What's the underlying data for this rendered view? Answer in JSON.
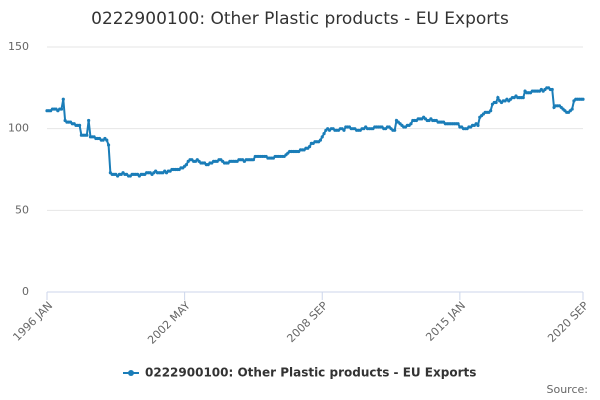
{
  "chart_data": {
    "type": "line",
    "title": "0222900100: Other Plastic products - EU Exports",
    "source": "Source:",
    "categories": [
      "1996 JAN",
      null,
      null,
      null,
      null,
      null,
      null,
      null,
      null,
      null,
      null,
      null,
      null,
      null,
      null,
      null,
      null,
      null,
      null,
      null,
      null,
      null,
      null,
      null,
      null,
      null,
      null,
      null,
      null,
      null,
      null,
      null,
      null,
      null,
      null,
      null,
      null,
      null,
      null,
      null,
      null,
      null,
      null,
      null,
      null,
      null,
      null,
      null,
      null,
      null,
      null,
      null,
      null,
      null,
      null,
      null,
      null,
      null,
      null,
      null,
      null,
      null,
      null,
      null,
      null,
      null,
      null,
      null,
      null,
      null,
      null,
      null,
      null,
      null,
      null,
      null,
      "2002 MAY",
      null,
      null,
      null,
      null,
      null,
      null,
      null,
      null,
      null,
      null,
      null,
      null,
      null,
      null,
      null,
      null,
      null,
      null,
      null,
      null,
      null,
      null,
      null,
      null,
      null,
      null,
      null,
      null,
      null,
      null,
      null,
      null,
      null,
      null,
      null,
      null,
      null,
      null,
      null,
      null,
      null,
      null,
      null,
      null,
      null,
      null,
      null,
      null,
      null,
      null,
      null,
      null,
      null,
      null,
      null,
      null,
      null,
      null,
      null,
      null,
      null,
      null,
      null,
      null,
      null,
      null,
      null,
      null,
      null,
      null,
      null,
      null,
      null,
      null,
      null,
      "2008 SEP",
      null,
      null,
      null,
      null,
      null,
      null,
      null,
      null,
      null,
      null,
      null,
      null,
      null,
      null,
      null,
      null,
      null,
      null,
      null,
      null,
      null,
      null,
      null,
      null,
      null,
      null,
      null,
      null,
      null,
      null,
      null,
      null,
      null,
      null,
      null,
      null,
      null,
      null,
      null,
      null,
      null,
      null,
      null,
      null,
      null,
      null,
      null,
      null,
      null,
      null,
      null,
      null,
      null,
      null,
      null,
      null,
      null,
      null,
      null,
      null,
      null,
      null,
      null,
      null,
      null,
      null,
      null,
      null,
      null,
      null,
      null,
      null,
      null,
      null,
      null,
      "2015 JAN",
      null,
      null,
      null,
      null,
      null,
      null,
      null,
      null,
      null,
      null,
      null,
      null,
      null,
      null,
      null,
      null,
      null,
      null,
      null,
      null,
      null,
      null,
      null,
      null,
      null,
      null,
      null,
      null,
      null,
      null,
      null,
      null,
      null,
      null,
      null,
      null,
      null,
      null,
      null,
      null,
      null,
      null,
      null,
      null,
      null,
      null,
      null,
      null,
      null,
      null,
      null,
      null,
      null,
      null,
      null,
      null,
      null,
      null,
      null,
      null,
      null,
      null,
      null,
      null,
      null,
      null,
      null,
      "2020 SEP"
    ],
    "series": [
      {
        "name": "0222900100: Other Plastic products - EU Exports",
        "color": "#1a7db8",
        "values": [
          111,
          111,
          111,
          112,
          112,
          112,
          111,
          112,
          112,
          118,
          105,
          104,
          104,
          104,
          103,
          103,
          102,
          102,
          102,
          96,
          96,
          96,
          96,
          105,
          95,
          95,
          95,
          94,
          94,
          94,
          93,
          93,
          94,
          93,
          90,
          73,
          72,
          72,
          72,
          71,
          72,
          72,
          73,
          72,
          72,
          71,
          71,
          72,
          72,
          72,
          72,
          71,
          72,
          72,
          72,
          73,
          73,
          73,
          72,
          73,
          74,
          73,
          73,
          73,
          73,
          74,
          73,
          74,
          74,
          75,
          75,
          75,
          75,
          75,
          76,
          76,
          77,
          78,
          80,
          81,
          81,
          80,
          80,
          81,
          80,
          79,
          79,
          79,
          78,
          78,
          79,
          79,
          80,
          80,
          80,
          81,
          81,
          80,
          79,
          79,
          79,
          80,
          80,
          80,
          80,
          80,
          81,
          81,
          81,
          80,
          81,
          81,
          81,
          81,
          81,
          83,
          83,
          83,
          83,
          83,
          83,
          83,
          82,
          82,
          82,
          82,
          83,
          83,
          83,
          83,
          83,
          83,
          84,
          85,
          86,
          86,
          86,
          86,
          86,
          86,
          87,
          87,
          87,
          88,
          88,
          89,
          91,
          91,
          92,
          92,
          92,
          93,
          95,
          97,
          99,
          100,
          99,
          100,
          100,
          99,
          99,
          99,
          100,
          100,
          99,
          101,
          101,
          101,
          100,
          100,
          100,
          99,
          99,
          99,
          100,
          100,
          101,
          100,
          100,
          100,
          100,
          101,
          101,
          101,
          101,
          101,
          100,
          100,
          101,
          101,
          100,
          99,
          99,
          105,
          104,
          103,
          102,
          101,
          101,
          102,
          102,
          103,
          105,
          105,
          105,
          106,
          106,
          106,
          107,
          106,
          105,
          105,
          106,
          105,
          105,
          105,
          104,
          104,
          104,
          104,
          103,
          103,
          103,
          103,
          103,
          103,
          103,
          103,
          101,
          101,
          100,
          100,
          100,
          101,
          101,
          102,
          102,
          103,
          102,
          107,
          108,
          109,
          110,
          110,
          110,
          111,
          115,
          116,
          116,
          119,
          117,
          116,
          117,
          117,
          118,
          117,
          118,
          119,
          119,
          120,
          119,
          119,
          119,
          119,
          123,
          122,
          122,
          122,
          123,
          123,
          123,
          123,
          123,
          124,
          123,
          124,
          125,
          125,
          124,
          124,
          113,
          114,
          114,
          114,
          113,
          112,
          111,
          110,
          110,
          111,
          112,
          117,
          118,
          118,
          118,
          118,
          118
        ]
      }
    ],
    "ylim": [
      0,
      150
    ],
    "yticks": [
      0,
      50,
      100,
      150
    ],
    "grid": true,
    "legend": "bottom"
  }
}
